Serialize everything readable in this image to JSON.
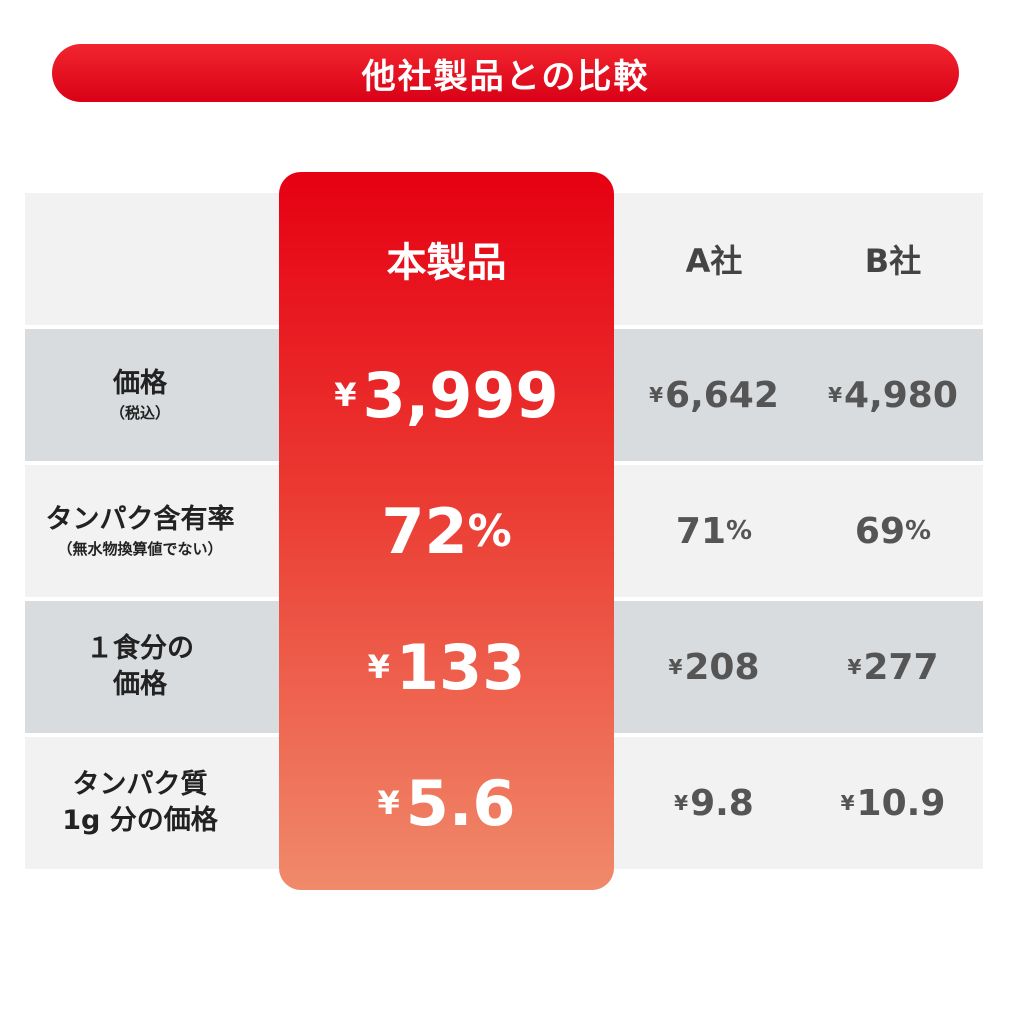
{
  "banner": {
    "title": "他社製品との比較"
  },
  "columns": {
    "ours": "本製品",
    "a": "A社",
    "b": "B社"
  },
  "rows": [
    {
      "label": "価格",
      "sublabel": "（税込）",
      "ours": "3,999",
      "a": "6,642",
      "b": "4,980",
      "unit": "yen"
    },
    {
      "label": "タンパク含有率",
      "sublabel": "（無水物換算値でない）",
      "ours": "72",
      "a": "71",
      "b": "69",
      "unit": "pct"
    },
    {
      "label_lines": [
        "１食分の",
        "価格"
      ],
      "ours": "133",
      "a": "208",
      "b": "277",
      "unit": "yen"
    },
    {
      "label_lines": [
        "タンパク質",
        "1g 分の価格"
      ],
      "ours": "5.6",
      "a": "9.8",
      "b": "10.9",
      "unit": "yen"
    }
  ],
  "symbols": {
    "yen": "¥",
    "pct": "%"
  },
  "colors": {
    "accent": "#e60012",
    "row_light": "#f2f2f2",
    "row_dark": "#d9dcdf"
  }
}
